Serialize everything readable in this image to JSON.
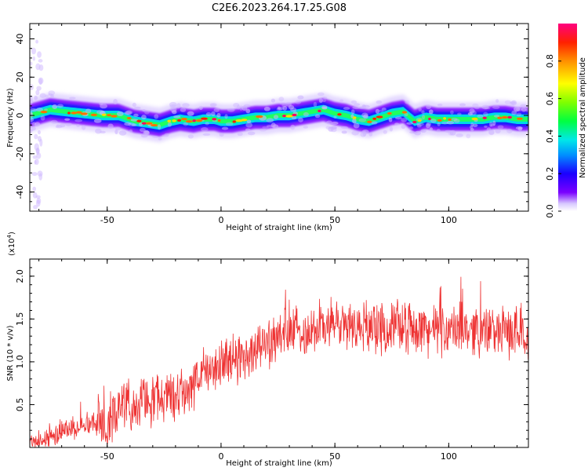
{
  "title": "C2E6.2023.264.17.25.G08",
  "chart_data": [
    {
      "type": "heatmap",
      "xlabel": "Height of straight line (km)",
      "ylabel": "Frequency (Hz)",
      "xlim": [
        -84,
        135
      ],
      "ylim": [
        -50,
        48
      ],
      "xticks": [
        -50,
        0,
        50,
        100
      ],
      "yticks": [
        40,
        20,
        0,
        -20,
        -40
      ],
      "ridge": {
        "x": [
          -84,
          -75,
          -68,
          -60,
          -52,
          -45,
          -38,
          -32,
          -27,
          -22,
          -18,
          -12,
          -8,
          -3,
          0,
          5,
          10,
          15,
          20,
          25,
          30,
          35,
          40,
          45,
          50,
          55,
          60,
          65,
          70,
          75,
          80,
          85,
          90,
          95,
          100,
          105,
          110,
          115,
          120,
          125,
          130,
          135
        ],
        "freq": [
          0,
          3,
          2,
          1,
          0,
          0,
          -3,
          -4,
          -5,
          -3,
          -2,
          -3,
          -2,
          -2,
          -3,
          -3,
          -2,
          -1,
          -1,
          0,
          0,
          1,
          2,
          3,
          1,
          0,
          -2,
          -3,
          -1,
          1,
          2,
          -3,
          -1,
          -2,
          -2,
          -2,
          -2,
          -2,
          -1,
          -1,
          -2,
          -2
        ]
      },
      "colorbar": {
        "label": "Normalized spectral amplitude",
        "ticks": [
          0.0,
          0.2,
          0.4,
          0.6,
          0.8
        ],
        "range": [
          0,
          1
        ]
      }
    },
    {
      "type": "line",
      "xlabel": "Height of straight line (km)",
      "ylabel": "SNR (10 * v/v)",
      "multiplier": "(x10",
      "multiplier_exp": "4",
      "multiplier_close": ")",
      "xlim": [
        -84,
        135
      ],
      "ylim": [
        0,
        2.2
      ],
      "xticks": [
        -50,
        0,
        50,
        100
      ],
      "yticks": [
        0.5,
        1.0,
        1.5,
        2.0
      ],
      "series": [
        {
          "color": "#ee3333",
          "x": [
            -84,
            -80,
            -75,
            -70,
            -65,
            -60,
            -55,
            -50,
            -45,
            -40,
            -35,
            -30,
            -25,
            -20,
            -15,
            -10,
            -5,
            0,
            5,
            10,
            15,
            20,
            25,
            30,
            35,
            40,
            45,
            50,
            55,
            60,
            65,
            70,
            75,
            80,
            85,
            90,
            95,
            100,
            105,
            110,
            115,
            120,
            125,
            130,
            135
          ],
          "values": [
            0.05,
            0.08,
            0.12,
            0.18,
            0.24,
            0.28,
            0.3,
            0.34,
            0.42,
            0.5,
            0.52,
            0.55,
            0.6,
            0.6,
            0.66,
            0.8,
            0.9,
            0.98,
            1.02,
            1.08,
            1.14,
            1.22,
            1.3,
            1.33,
            1.36,
            1.38,
            1.42,
            1.44,
            1.43,
            1.41,
            1.42,
            1.4,
            1.4,
            1.42,
            1.4,
            1.38,
            1.37,
            1.36,
            1.38,
            1.38,
            1.37,
            1.36,
            1.35,
            1.35,
            1.35
          ]
        }
      ]
    }
  ]
}
